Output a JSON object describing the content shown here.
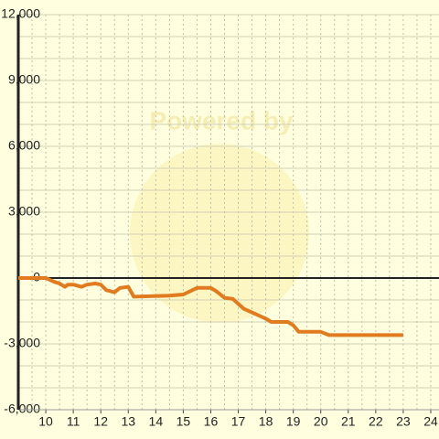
{
  "chart_data": {
    "type": "line",
    "watermark": "Powered by",
    "x": [
      9.0,
      10.0,
      10.3,
      10.5,
      10.7,
      10.8,
      11.0,
      11.3,
      11.5,
      11.8,
      12.0,
      12.2,
      12.5,
      12.7,
      13.0,
      13.2,
      14.5,
      15.0,
      15.5,
      16.0,
      16.2,
      16.5,
      16.8,
      17.2,
      18.0,
      18.2,
      18.8,
      19.0,
      19.2,
      20.0,
      20.3,
      23.0
    ],
    "series": [
      {
        "color": "#e07b20",
        "values": [
          0,
          0,
          -170,
          -250,
          -400,
          -300,
          -300,
          -400,
          -300,
          -250,
          -300,
          -550,
          -650,
          -450,
          -400,
          -850,
          -800,
          -750,
          -450,
          -450,
          -600,
          -900,
          -950,
          -1400,
          -1850,
          -2000,
          -2000,
          -2150,
          -2450,
          -2450,
          -2600,
          -2600
        ]
      }
    ],
    "xlim": [
      9,
      24.3
    ],
    "xticks": [
      10,
      11,
      12,
      13,
      14,
      15,
      16,
      17,
      18,
      19,
      20,
      21,
      22,
      23,
      24
    ],
    "xgrid": [
      9.5,
      10,
      10.5,
      11,
      11.5,
      12,
      12.5,
      13,
      13.5,
      14,
      14.5,
      15,
      15.5,
      16,
      16.5,
      17,
      17.5,
      18,
      18.5,
      19,
      19.5,
      20,
      20.5,
      21,
      21.5,
      22,
      22.5,
      23,
      23.5,
      24
    ],
    "ylim": [
      -6000,
      12000
    ],
    "yticks": [
      {
        "value": -6000,
        "label": "-6,000"
      },
      {
        "value": -3000,
        "label": "-3,000"
      },
      0,
      {
        "value": 3000,
        "label": "3,000"
      },
      {
        "value": 6000,
        "label": "6,000"
      },
      {
        "value": 9000,
        "label": "9,000"
      },
      {
        "value": 12000,
        "label": "12,000"
      }
    ],
    "ygrid": [
      -5000,
      -4000,
      -2000,
      -1000,
      1000,
      2000,
      4000,
      5000,
      7000,
      8000,
      10000,
      11000
    ],
    "grid": true
  }
}
